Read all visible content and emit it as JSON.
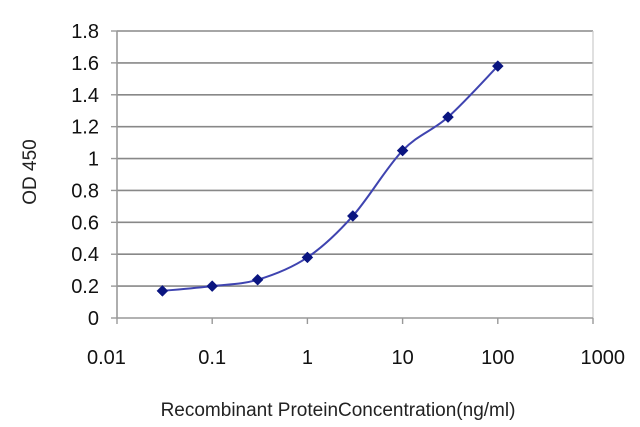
{
  "chart_data": {
    "type": "line",
    "title": "",
    "xlabel": "Recombinant ProteinConcentration(ng/ml)",
    "ylabel": "OD 450",
    "x_scale": "log",
    "xlim": [
      0.01,
      1000
    ],
    "ylim": [
      0,
      1.8
    ],
    "grid": "horizontal",
    "legend": "none",
    "x_ticks": [
      0.01,
      0.1,
      1,
      10,
      100,
      1000
    ],
    "x_tick_labels": [
      "0.01",
      "0.1",
      "1",
      "10",
      "100",
      "1000"
    ],
    "y_ticks": [
      0,
      0.2,
      0.4,
      0.6,
      0.8,
      1,
      1.2,
      1.4,
      1.6,
      1.8
    ],
    "y_tick_labels": [
      "0",
      "0.2",
      "0.4",
      "0.6",
      "0.8",
      "1",
      "1.2",
      "1.4",
      "1.6",
      "1.8"
    ],
    "series": [
      {
        "x": [
          0.03,
          0.1,
          0.3,
          1,
          3,
          10,
          30,
          100
        ],
        "y": [
          0.17,
          0.2,
          0.24,
          0.38,
          0.64,
          1.05,
          1.26,
          1.58
        ]
      }
    ],
    "colors": {
      "series": "#3f44b0",
      "marker": "#0a1580",
      "grid": "#888888",
      "axis": "#999999",
      "frame": "#cccccc"
    }
  }
}
